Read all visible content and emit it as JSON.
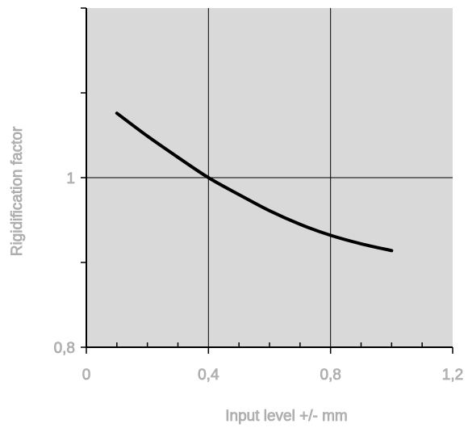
{
  "chart_data": {
    "type": "line",
    "title": "",
    "xlabel": "Input level +/- mm",
    "ylabel": "Rigidification factor",
    "xlim": [
      0,
      1.2
    ],
    "ylim": [
      0.8,
      1.2
    ],
    "x_ticks": [
      0,
      0.4,
      0.8,
      1.2
    ],
    "x_tick_labels": [
      "0",
      "0,4",
      "0,8",
      "1,2"
    ],
    "x_minor_step": 0.1,
    "y_ticks": [
      0.8,
      0.9,
      1.0,
      1.1,
      1.2
    ],
    "y_tick_labels": [
      "0,8",
      "",
      "1",
      "",
      ""
    ],
    "grid": true,
    "legend": "none",
    "series": [
      {
        "x": [
          0.1,
          0.2,
          0.3,
          0.4,
          0.5,
          0.6,
          0.7,
          0.8,
          0.9,
          1.0
        ],
        "values": [
          1.076,
          1.049,
          1.024,
          1.0,
          0.98,
          0.961,
          0.945,
          0.932,
          0.922,
          0.914
        ]
      }
    ],
    "colors": {
      "plot_background": "#d9d9d9",
      "grid": "#000000",
      "axis": "#000000",
      "line": "#000000",
      "text": "#b3b3b3"
    }
  }
}
